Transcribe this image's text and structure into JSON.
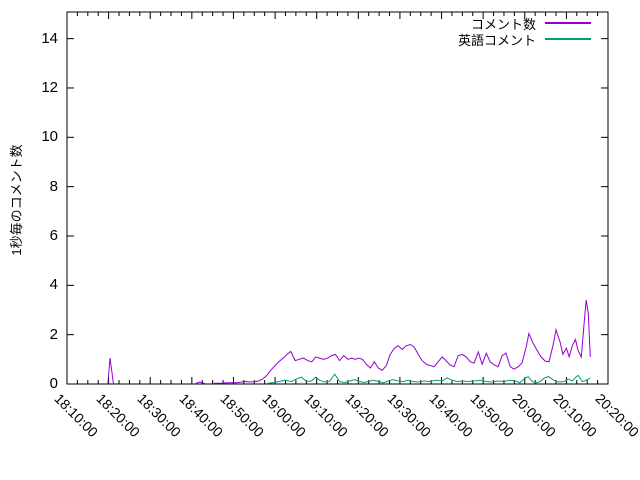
{
  "chart_data": {
    "type": "line",
    "title": "",
    "xlabel": "",
    "ylabel": "1秒毎のコメント数",
    "grid": false,
    "legend_position": "top-right-inside",
    "background_color": "#ffffff",
    "axis_color": "#000000",
    "ylim": [
      0,
      15.08
    ],
    "y_ticks": [
      0,
      2,
      4,
      6,
      8,
      10,
      12,
      14
    ],
    "xlim": [
      "18:10:00",
      "20:20:00"
    ],
    "x_tick_interval_seconds": 600,
    "x_minor_divisions": 4,
    "x_tick_labels": [
      "18:10:00",
      "18:20:00",
      "18:30:00",
      "18:40:00",
      "18:50:00",
      "19:00:00",
      "19:10:00",
      "19:20:00",
      "19:30:00",
      "19:40:00",
      "19:50:00",
      "20:00:00",
      "20:10:00",
      "20:20:00"
    ],
    "series": [
      {
        "name": "コメント数",
        "color": "#9400d3",
        "segments": [
          [
            [
              "18:19:50",
              0
            ],
            [
              "18:20:20",
              1.05
            ],
            [
              "18:21:10",
              0
            ]
          ],
          [
            [
              "18:40:55",
              0.02
            ],
            [
              "18:41:55",
              0.08
            ],
            [
              "18:43:05",
              0.02
            ]
          ],
          [
            [
              "18:45:15",
              0.03
            ],
            [
              "18:46:55",
              0.03
            ],
            [
              "18:48:50",
              0.05
            ],
            [
              "18:50:45",
              0.05
            ],
            [
              "18:52:40",
              0.1
            ],
            [
              "18:54:05",
              0.08
            ],
            [
              "18:55:20",
              0.1
            ],
            [
              "18:56:00",
              0.12
            ],
            [
              "18:57:00",
              0.2
            ],
            [
              "18:58:00",
              0.35
            ],
            [
              "18:58:55",
              0.55
            ],
            [
              "19:00:00",
              0.75
            ],
            [
              "19:00:55",
              0.9
            ],
            [
              "19:01:55",
              1.05
            ],
            [
              "19:02:55",
              1.2
            ],
            [
              "19:03:45",
              1.32
            ],
            [
              "19:04:50",
              0.95
            ],
            [
              "19:05:50",
              1.0
            ],
            [
              "19:06:50",
              1.05
            ],
            [
              "19:07:50",
              0.95
            ],
            [
              "19:08:50",
              0.9
            ],
            [
              "19:09:45",
              1.1
            ],
            [
              "19:10:40",
              1.05
            ],
            [
              "19:11:40",
              1.0
            ],
            [
              "19:12:40",
              1.05
            ],
            [
              "19:13:35",
              1.15
            ],
            [
              "19:14:30",
              1.2
            ],
            [
              "19:15:30",
              0.95
            ],
            [
              "19:16:30",
              1.15
            ],
            [
              "19:17:30",
              1.0
            ],
            [
              "19:18:25",
              1.05
            ],
            [
              "19:19:20",
              1.0
            ],
            [
              "19:20:00",
              1.05
            ],
            [
              "19:21:00",
              1.0
            ],
            [
              "19:21:55",
              0.8
            ],
            [
              "19:22:55",
              0.65
            ],
            [
              "19:23:50",
              0.9
            ],
            [
              "19:24:50",
              0.65
            ],
            [
              "19:25:45",
              0.55
            ],
            [
              "19:26:45",
              0.75
            ],
            [
              "19:27:40",
              1.2
            ],
            [
              "19:28:40",
              1.45
            ],
            [
              "19:29:35",
              1.55
            ],
            [
              "19:30:35",
              1.4
            ],
            [
              "19:31:30",
              1.55
            ],
            [
              "19:32:30",
              1.6
            ],
            [
              "19:33:25",
              1.5
            ],
            [
              "19:34:25",
              1.2
            ],
            [
              "19:35:20",
              0.95
            ],
            [
              "19:36:20",
              0.8
            ],
            [
              "19:37:15",
              0.75
            ],
            [
              "19:38:15",
              0.7
            ],
            [
              "19:39:10",
              0.9
            ],
            [
              "19:40:10",
              1.1
            ],
            [
              "19:41:05",
              0.95
            ],
            [
              "19:42:05",
              0.77
            ],
            [
              "19:43:00",
              0.7
            ],
            [
              "19:44:00",
              1.15
            ],
            [
              "19:45:00",
              1.2
            ],
            [
              "19:45:55",
              1.1
            ],
            [
              "19:46:55",
              0.9
            ],
            [
              "19:47:50",
              0.85
            ],
            [
              "19:48:50",
              1.3
            ],
            [
              "19:49:45",
              0.8
            ],
            [
              "19:50:45",
              1.25
            ],
            [
              "19:51:40",
              0.9
            ],
            [
              "19:52:40",
              0.77
            ],
            [
              "19:53:35",
              0.7
            ],
            [
              "19:54:35",
              1.15
            ],
            [
              "19:55:30",
              1.25
            ],
            [
              "19:56:30",
              0.7
            ],
            [
              "19:57:25",
              0.6
            ],
            [
              "19:58:25",
              0.7
            ],
            [
              "19:59:20",
              0.85
            ],
            [
              "20:00:20",
              1.5
            ],
            [
              "20:01:00",
              2.05
            ],
            [
              "20:02:00",
              1.65
            ],
            [
              "20:03:00",
              1.35
            ],
            [
              "20:03:55",
              1.1
            ],
            [
              "20:04:55",
              0.93
            ],
            [
              "20:05:50",
              0.9
            ],
            [
              "20:06:50",
              1.6
            ],
            [
              "20:07:30",
              2.2
            ],
            [
              "20:08:30",
              1.7
            ],
            [
              "20:09:10",
              1.2
            ],
            [
              "20:10:00",
              1.45
            ],
            [
              "20:10:40",
              1.1
            ],
            [
              "20:11:25",
              1.55
            ],
            [
              "20:12:10",
              1.8
            ],
            [
              "20:12:50",
              1.35
            ],
            [
              "20:13:35",
              1.1
            ],
            [
              "20:14:20",
              2.6
            ],
            [
              "20:14:45",
              3.4
            ],
            [
              "20:15:15",
              2.9
            ],
            [
              "20:15:45",
              1.1
            ]
          ]
        ]
      },
      {
        "name": "英語コメント",
        "color": "#009e73",
        "segments": [
          [
            [
              "18:58:00",
              0.02
            ],
            [
              "18:59:25",
              0.05
            ],
            [
              "19:00:55",
              0.1
            ],
            [
              "19:02:25",
              0.15
            ],
            [
              "19:03:55",
              0.1
            ],
            [
              "19:05:20",
              0.22
            ],
            [
              "19:06:20",
              0.28
            ],
            [
              "19:07:30",
              0.1
            ],
            [
              "19:08:45",
              0.12
            ],
            [
              "19:09:45",
              0.28
            ],
            [
              "19:10:40",
              0.15
            ],
            [
              "19:11:55",
              0.08
            ],
            [
              "19:13:10",
              0.12
            ],
            [
              "19:14:20",
              0.4
            ],
            [
              "19:15:30",
              0.1
            ],
            [
              "19:16:45",
              0.06
            ],
            [
              "19:17:55",
              0.12
            ],
            [
              "19:19:10",
              0.18
            ],
            [
              "19:20:00",
              0.12
            ],
            [
              "19:21:10",
              0.06
            ],
            [
              "19:22:25",
              0.1
            ],
            [
              "19:23:35",
              0.15
            ],
            [
              "19:24:50",
              0.1
            ],
            [
              "19:26:00",
              0.05
            ],
            [
              "19:27:10",
              0.12
            ],
            [
              "19:28:25",
              0.18
            ],
            [
              "19:29:35",
              0.12
            ],
            [
              "19:30:50",
              0.1
            ],
            [
              "19:32:00",
              0.15
            ],
            [
              "19:33:10",
              0.1
            ],
            [
              "19:34:25",
              0.08
            ],
            [
              "19:35:50",
              0.12
            ],
            [
              "19:37:15",
              0.1
            ],
            [
              "19:38:45",
              0.15
            ],
            [
              "19:40:10",
              0.12
            ],
            [
              "19:41:20",
              0.25
            ],
            [
              "19:42:30",
              0.15
            ],
            [
              "19:44:00",
              0.1
            ],
            [
              "19:45:10",
              0.12
            ],
            [
              "19:46:25",
              0.1
            ],
            [
              "19:47:50",
              0.12
            ],
            [
              "19:49:15",
              0.15
            ],
            [
              "19:50:45",
              0.1
            ],
            [
              "19:52:10",
              0.08
            ],
            [
              "19:53:35",
              0.12
            ],
            [
              "19:55:00",
              0.1
            ],
            [
              "19:56:15",
              0.15
            ],
            [
              "19:57:40",
              0.13
            ],
            [
              "19:58:50",
              0.05
            ],
            [
              "20:00:05",
              0.24
            ],
            [
              "20:00:50",
              0.3
            ],
            [
              "20:01:45",
              0.1
            ],
            [
              "20:02:45",
              0.05
            ],
            [
              "20:03:40",
              0.1
            ],
            [
              "20:04:40",
              0.24
            ],
            [
              "20:05:40",
              0.3
            ],
            [
              "20:06:35",
              0.2
            ],
            [
              "20:07:30",
              0.1
            ],
            [
              "20:08:30",
              0.08
            ],
            [
              "20:09:30",
              0.1
            ],
            [
              "20:10:25",
              0.2
            ],
            [
              "20:11:25",
              0.12
            ],
            [
              "20:12:25",
              0.3
            ],
            [
              "20:12:50",
              0.35
            ],
            [
              "20:13:50",
              0.1
            ],
            [
              "20:14:45",
              0.15
            ],
            [
              "20:15:45",
              0.25
            ]
          ]
        ]
      }
    ]
  }
}
